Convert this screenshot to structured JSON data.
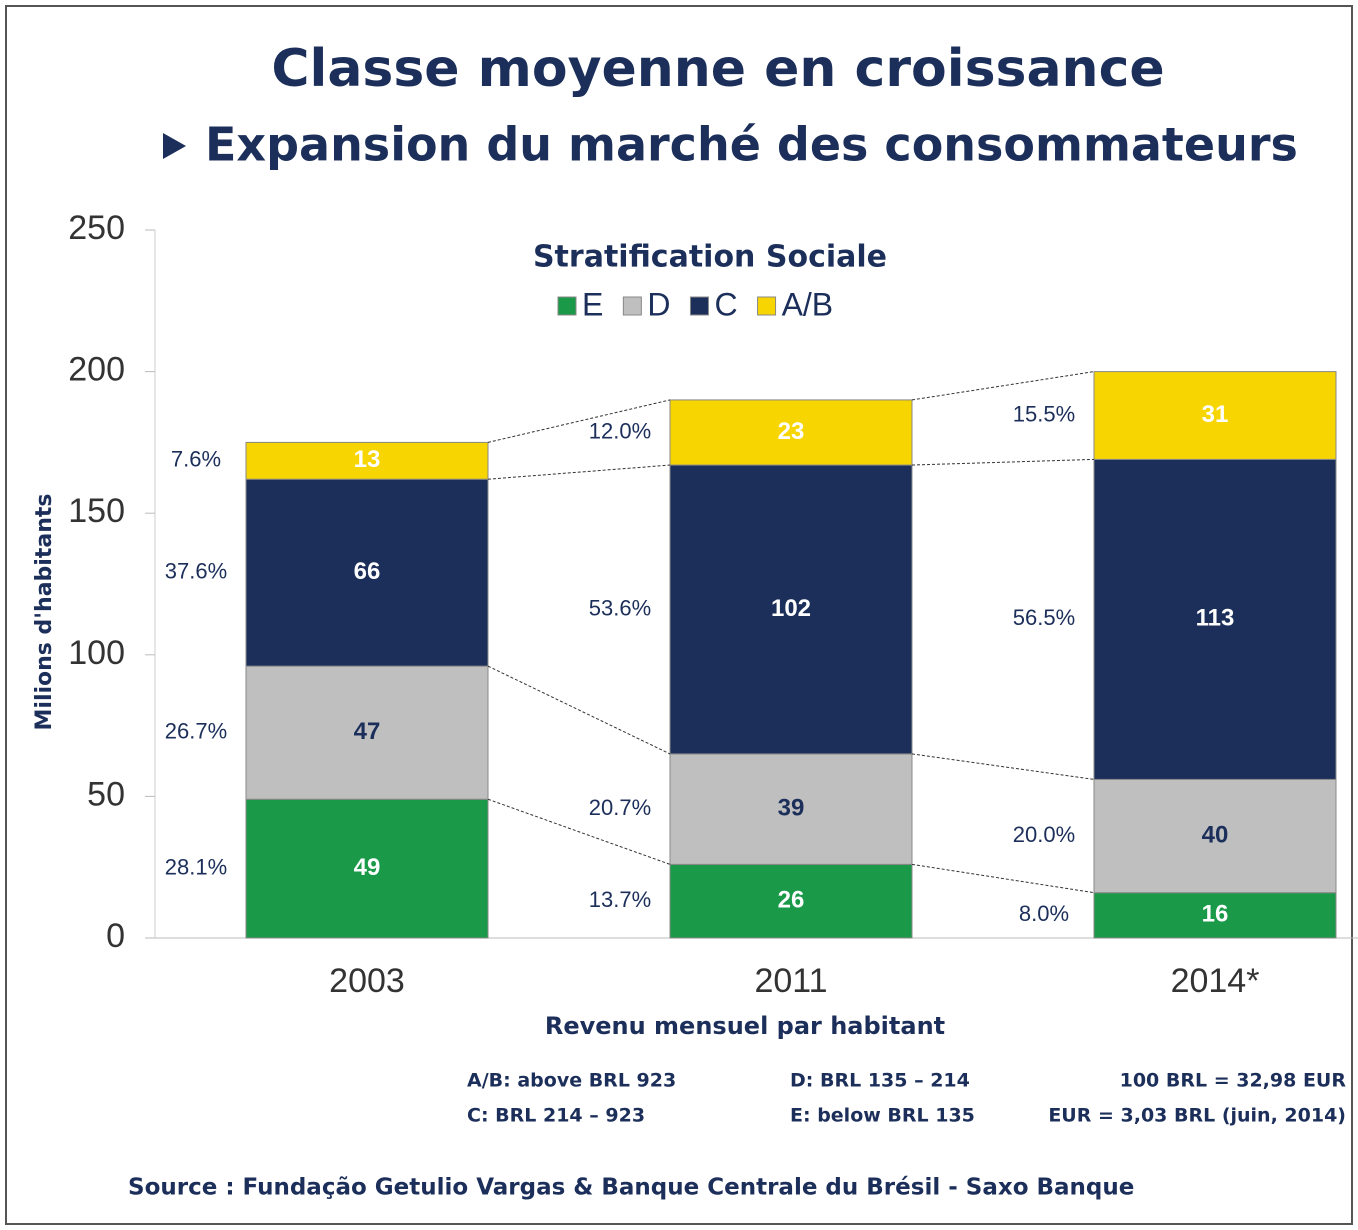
{
  "chart_data": {
    "type": "stacked_bar",
    "title": "Classe moyenne en croissance",
    "subtitle": "Expansion du marché des consommateurs",
    "legend_title": "Stratification Sociale",
    "ylabel": "Milions d'habitants",
    "xlabel": "Revenu mensuel par habitant",
    "categories": [
      "2003",
      "2011",
      "2014*"
    ],
    "ylim": [
      0,
      250
    ],
    "yticks": [
      0,
      50,
      100,
      150,
      200,
      250
    ],
    "series": [
      {
        "name": "E",
        "color": "#1a9a48",
        "label_color": "#ffffff",
        "values": [
          49,
          26,
          16
        ],
        "share_labels": [
          "28.1%",
          "13.7%",
          "8.0%"
        ]
      },
      {
        "name": "D",
        "color": "#bfbfbf",
        "label_color": "#1c2f5a",
        "values": [
          47,
          39,
          40
        ],
        "share_labels": [
          "26.7%",
          "20.7%",
          "20.0%"
        ]
      },
      {
        "name": "C",
        "color": "#1c2f5a",
        "label_color": "#ffffff",
        "values": [
          66,
          102,
          113
        ],
        "share_labels": [
          "37.6%",
          "53.6%",
          "56.5%"
        ]
      },
      {
        "name": "A/B",
        "color": "#f7d500",
        "label_color": "#ffffff",
        "values": [
          13,
          23,
          31
        ],
        "share_labels": [
          "7.6%",
          "12.0%",
          "15.5%"
        ]
      }
    ],
    "notes": [
      "A/B: above BRL 923",
      "C: BRL 214 – 923",
      "D: BRL 135 – 214",
      "E: below BRL 135",
      "100 BRL = 32,98 EUR",
      "EUR = 3,03 BRL (juin, 2014)"
    ],
    "source": "Source : Fundação Getulio Vargas & Banque Centrale du Brésil - Saxo Banque"
  }
}
